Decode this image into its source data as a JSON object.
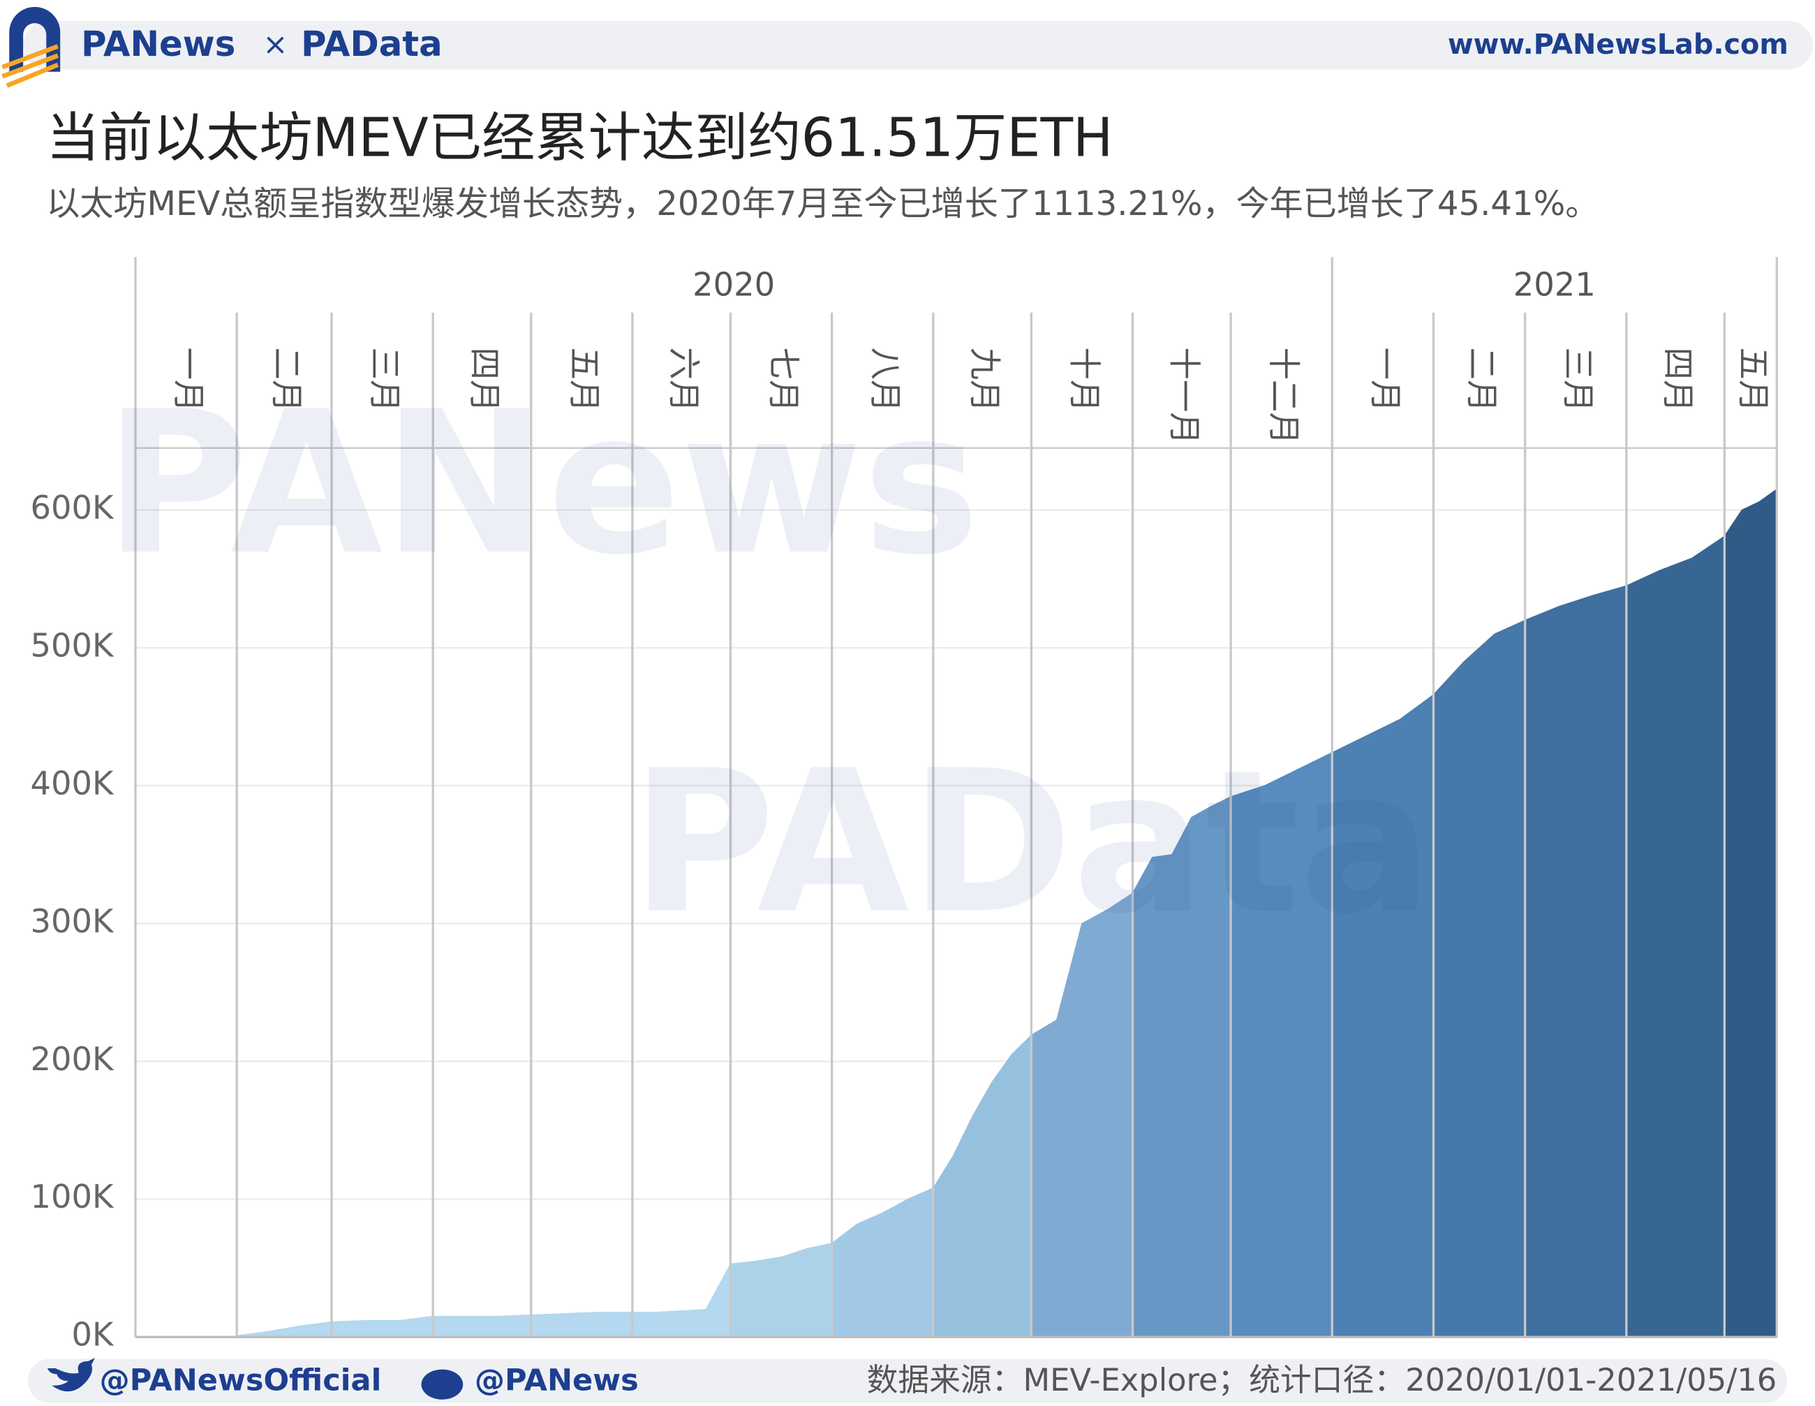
{
  "header": {
    "brand": "PANews",
    "cross": "×",
    "brand2": "PAData",
    "url": "www.PANewsLab.com"
  },
  "watermarks": [
    "PANews",
    "PAData"
  ],
  "chart_data": {
    "type": "area",
    "title": "当前以太坊MEV已经累计达到约61.51万ETH",
    "subtitle": "以太坊MEV总额呈指数型爆发增长态势，2020年7月至今已增长了1113.21%，今年已增长了45.41%。",
    "groups": [
      {
        "name": "2020",
        "categories": [
          "一月",
          "二月",
          "三月",
          "四月",
          "五月",
          "六月",
          "七月",
          "八月",
          "九月",
          "十月",
          "十一月",
          "十二月"
        ]
      },
      {
        "name": "2021",
        "categories": [
          "一月",
          "二月",
          "三月",
          "四月",
          "五月"
        ]
      }
    ],
    "series": [
      {
        "color": "#b3d8ef",
        "values": [
          0,
          0,
          0,
          0
        ]
      },
      {
        "color": "#b3d8ef",
        "values": [
          1000,
          4000,
          8000,
          11000
        ]
      },
      {
        "color": "#b3d8ef",
        "values": [
          11000,
          12000,
          12000,
          15000
        ]
      },
      {
        "color": "#b3d8ef",
        "values": [
          15000,
          15000,
          15000,
          16000
        ]
      },
      {
        "color": "#b3d8ef",
        "values": [
          16000,
          17000,
          18000,
          18000
        ]
      },
      {
        "color": "#b3d8ef",
        "values": [
          18000,
          18000,
          19000,
          20000,
          53000
        ]
      },
      {
        "color": "#acd2ea",
        "values": [
          53000,
          55000,
          58000,
          64000,
          68000
        ]
      },
      {
        "color": "#a1c9e5",
        "values": [
          68000,
          82000,
          90000,
          100000,
          108000
        ]
      },
      {
        "color": "#95c1df",
        "values": [
          108000,
          131000,
          160000,
          185000,
          205000,
          219000
        ]
      },
      {
        "color": "#7fabd3",
        "values": [
          219000,
          230000,
          300000,
          310000,
          322000
        ]
      },
      {
        "color": "#6797c5",
        "values": [
          322000,
          348000,
          350000,
          377000,
          385000,
          392000
        ]
      },
      {
        "color": "#588bbe",
        "values": [
          392000,
          400000,
          412000,
          424000
        ]
      },
      {
        "color": "#4d80b3",
        "values": [
          424000,
          436000,
          448000,
          466000
        ]
      },
      {
        "color": "#4678a9",
        "values": [
          466000,
          490000,
          510000,
          520000
        ]
      },
      {
        "color": "#3f6f9e",
        "values": [
          520000,
          530000,
          538000,
          545000
        ]
      },
      {
        "color": "#386693",
        "values": [
          545000,
          556000,
          565000,
          581000
        ]
      },
      {
        "color": "#315b87",
        "values": [
          581000,
          600000,
          606000,
          615100
        ]
      }
    ],
    "ylim": [
      0,
      645000
    ],
    "yticks": [
      {
        "value": 0,
        "label": "0K"
      },
      {
        "value": 100000,
        "label": "100K"
      },
      {
        "value": 200000,
        "label": "200K"
      },
      {
        "value": 300000,
        "label": "300K"
      },
      {
        "value": 400000,
        "label": "400K"
      },
      {
        "value": 500000,
        "label": "500K"
      },
      {
        "value": 600000,
        "label": "600K"
      }
    ],
    "grid": true
  },
  "footer": {
    "twitter": "@PANewsOfficial",
    "weibo": "@PANews",
    "source": "数据来源：MEV-Explore；统计口径：2020/01/01-2021/05/16"
  }
}
